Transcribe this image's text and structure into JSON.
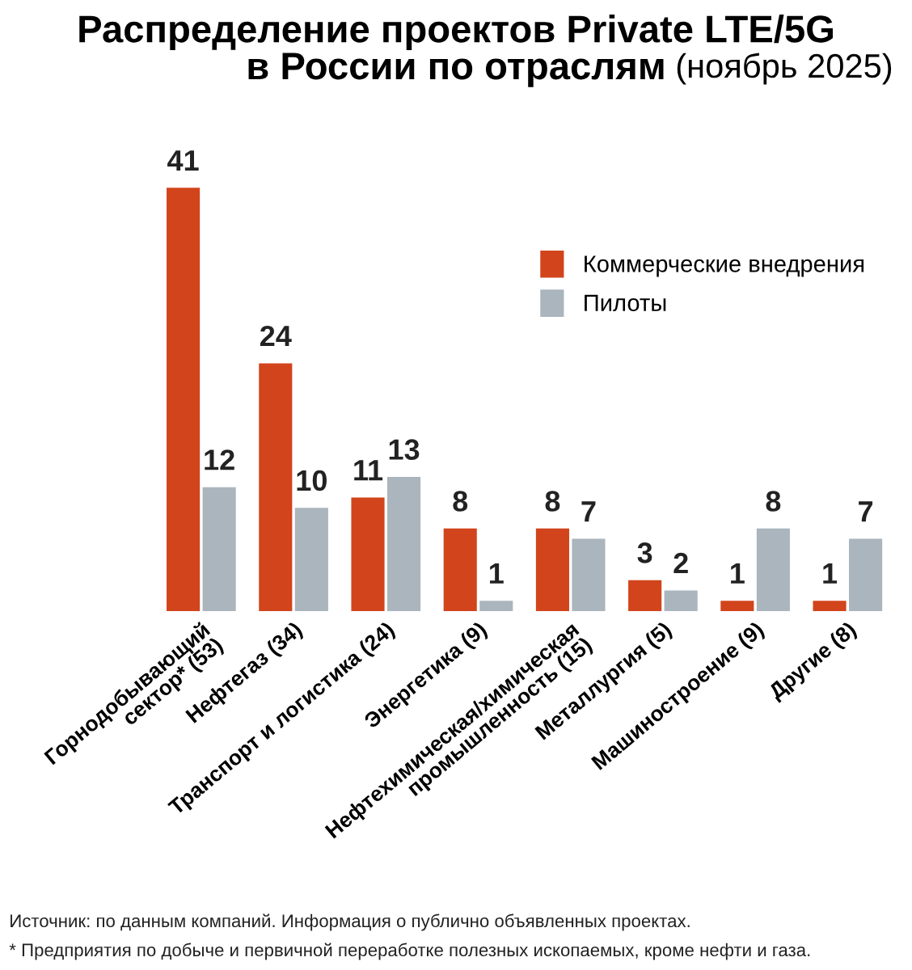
{
  "chart_data": {
    "type": "bar",
    "title": "Распределение проектов Private LTE/5G\nв России по отраслям",
    "subtitle": "(ноябрь 2025)",
    "categories": [
      "Горнодобывающий\nсектор* (53)",
      "Нефтегаз (34)",
      "Транспорт и логистика (24)",
      "Энергетика (9)",
      "Нефтехимическая/химическая\nпромышленность (15)",
      "Металлургия (5)",
      "Машиностроение (9)",
      "Другие (8)"
    ],
    "series": [
      {
        "name": "Коммерческие внедрения",
        "color": "#d2441c",
        "values": [
          41,
          24,
          11,
          8,
          8,
          3,
          1,
          1
        ]
      },
      {
        "name": "Пилоты",
        "color": "#aab5bd",
        "values": [
          12,
          10,
          13,
          1,
          7,
          2,
          8,
          7
        ]
      }
    ],
    "data_labels": true,
    "legend": "top right",
    "annotations": [
      "Источник: по данным компаний. Информация о публично объявленных проектах.",
      "* Предприятия по добыче и первичной переработке полезных ископаемых, кроме нефти и газа."
    ]
  }
}
